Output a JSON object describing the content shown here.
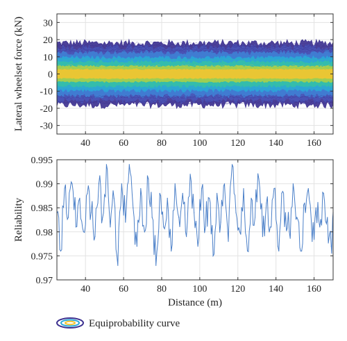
{
  "chart_data": [
    {
      "type": "area",
      "ylabel": "Lateral wheelset force (kN)",
      "xlabel": "",
      "xlim": [
        25,
        170
      ],
      "ylim": [
        -35,
        35
      ],
      "xticks": [
        40,
        60,
        80,
        100,
        120,
        140,
        160
      ],
      "yticks": [
        30,
        20,
        10,
        0,
        -10,
        -20,
        -30
      ],
      "grid": true,
      "description_series": "Equiprobability contour bands of lateral force versus distance",
      "bands": [
        {
          "lower": -18,
          "upper": 18,
          "color": "#3b2f8f"
        },
        {
          "lower": -15.5,
          "upper": 15.5,
          "color": "#4a55b8"
        },
        {
          "lower": -12.5,
          "upper": 12.5,
          "color": "#3f7fd4"
        },
        {
          "lower": -9.5,
          "upper": 9.5,
          "color": "#2aa7d8"
        },
        {
          "lower": -7,
          "upper": 7,
          "color": "#35bfa8"
        },
        {
          "lower": -4.5,
          "upper": 4.5,
          "color": "#a8cf4a"
        },
        {
          "lower": -2.5,
          "upper": 2.5,
          "color": "#f2c531"
        }
      ],
      "series": [
        {
          "name": "Equiprobability curve",
          "approx_center": 0,
          "approx_amplitude": 18
        }
      ]
    },
    {
      "type": "line",
      "xlabel": "Distance (m)",
      "ylabel": "Reliability",
      "xlim": [
        25,
        170
      ],
      "ylim": [
        0.97,
        0.995
      ],
      "xticks": [
        40,
        60,
        80,
        100,
        120,
        140,
        160
      ],
      "yticks": [
        0.995,
        0.99,
        0.985,
        0.98,
        0.975,
        0.97
      ],
      "grid": true,
      "color": "#4a7fc8",
      "x": [
        25,
        27,
        29,
        31,
        33,
        35,
        37,
        39,
        41,
        43,
        45,
        47,
        49,
        51,
        53,
        55,
        57,
        59,
        61,
        63,
        65,
        67,
        69,
        71,
        73,
        75,
        77,
        79,
        81,
        83,
        85,
        87,
        89,
        91,
        93,
        95,
        97,
        99,
        101,
        103,
        105,
        107,
        109,
        111,
        113,
        115,
        117,
        119,
        121,
        123,
        125,
        127,
        129,
        131,
        133,
        135,
        137,
        139,
        141,
        143,
        145,
        147,
        149,
        151,
        153,
        155,
        157,
        159,
        161,
        163,
        165,
        167,
        169,
        170
      ],
      "y": [
        0.984,
        0.976,
        0.989,
        0.983,
        0.99,
        0.981,
        0.987,
        0.98,
        0.988,
        0.984,
        0.979,
        0.99,
        0.983,
        0.994,
        0.981,
        0.987,
        0.973,
        0.99,
        0.982,
        0.994,
        0.985,
        0.977,
        0.989,
        0.98,
        0.991,
        0.983,
        0.973,
        0.988,
        0.981,
        0.987,
        0.976,
        0.99,
        0.983,
        0.988,
        0.979,
        0.992,
        0.984,
        0.977,
        0.989,
        0.981,
        0.987,
        0.975,
        0.988,
        0.982,
        0.99,
        0.978,
        0.994,
        0.984,
        0.98,
        0.989,
        0.976,
        0.987,
        0.983,
        0.991,
        0.979,
        0.986,
        0.981,
        0.989,
        0.977,
        0.988,
        0.984,
        0.98,
        0.99,
        0.983,
        0.976,
        0.986,
        0.989,
        0.978,
        0.985,
        0.981,
        0.988,
        0.983,
        0.977,
        0.984
      ]
    }
  ],
  "legend": {
    "label": "Equiprobability curve"
  }
}
